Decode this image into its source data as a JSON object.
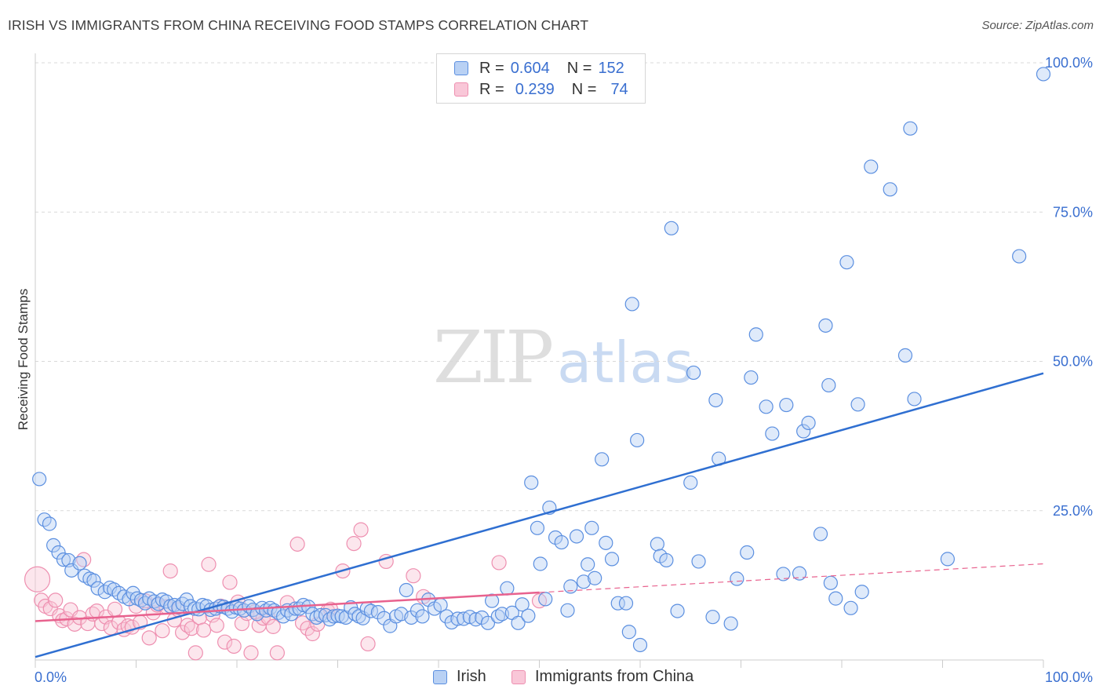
{
  "title": "IRISH VS IMMIGRANTS FROM CHINA RECEIVING FOOD STAMPS CORRELATION CHART",
  "source": "Source: ZipAtlas.com",
  "watermark": {
    "zip": "ZIP",
    "atlas": "atlas"
  },
  "legend": {
    "r_label": "R =",
    "n_label": "N =",
    "rows": [
      {
        "name": "Irish",
        "r": "0.604",
        "n": "152"
      },
      {
        "name": "Immigrants from China",
        "r": "0.239",
        "n": "74"
      }
    ]
  },
  "colors": {
    "irish": "#5b8fe0",
    "irish_fill": "#b9d1f4",
    "irish_line": "#2f6fd1",
    "china": "#ee8fb0",
    "china_fill": "#f9c7d8",
    "china_line": "#e8628e",
    "tick_label": "#3a6fd0"
  },
  "chart_data": {
    "type": "scatter",
    "title": "IRISH VS IMMIGRANTS FROM CHINA RECEIVING FOOD STAMPS CORRELATION CHART",
    "xlabel": "",
    "ylabel": "Receiving Food Stamps",
    "xlim": [
      0,
      100
    ],
    "ylim": [
      0,
      100
    ],
    "x_tick_labels": [
      "0.0%",
      "100.0%"
    ],
    "y_tick_labels": [
      "25.0%",
      "50.0%",
      "75.0%",
      "100.0%"
    ],
    "y_ticks": [
      25,
      50,
      75,
      100
    ],
    "grid": true,
    "series": [
      {
        "name": "Irish",
        "r": 0.604,
        "n": 152,
        "trend": {
          "x": [
            0,
            100
          ],
          "y": [
            0.5,
            48.0
          ],
          "style": "solid"
        },
        "points": [
          [
            0.4,
            30.3
          ],
          [
            0.9,
            23.5
          ],
          [
            1.4,
            22.8
          ],
          [
            1.8,
            19.2
          ],
          [
            2.3,
            18.0
          ],
          [
            2.8,
            16.8
          ],
          [
            3.3,
            16.7
          ],
          [
            3.6,
            15.0
          ],
          [
            4.4,
            16.2
          ],
          [
            4.9,
            14.1
          ],
          [
            5.4,
            13.6
          ],
          [
            5.8,
            13.3
          ],
          [
            6.2,
            12.0
          ],
          [
            6.9,
            11.4
          ],
          [
            7.4,
            12.1
          ],
          [
            7.8,
            11.8
          ],
          [
            8.3,
            11.2
          ],
          [
            8.8,
            10.6
          ],
          [
            9.3,
            10.2
          ],
          [
            9.7,
            11.2
          ],
          [
            10.1,
            10.3
          ],
          [
            10.5,
            10.0
          ],
          [
            10.9,
            9.5
          ],
          [
            11.3,
            10.3
          ],
          [
            11.8,
            9.8
          ],
          [
            12.2,
            9.4
          ],
          [
            12.6,
            10.1
          ],
          [
            13.0,
            9.8
          ],
          [
            13.4,
            9.0
          ],
          [
            13.8,
            9.2
          ],
          [
            14.2,
            8.8
          ],
          [
            14.6,
            9.4
          ],
          [
            15.0,
            10.1
          ],
          [
            15.4,
            9.0
          ],
          [
            15.8,
            8.6
          ],
          [
            16.2,
            8.5
          ],
          [
            16.6,
            9.2
          ],
          [
            17.0,
            9.0
          ],
          [
            17.4,
            8.4
          ],
          [
            17.9,
            8.6
          ],
          [
            18.3,
            9.0
          ],
          [
            18.7,
            8.9
          ],
          [
            19.1,
            8.6
          ],
          [
            19.5,
            8.1
          ],
          [
            19.9,
            8.8
          ],
          [
            20.3,
            8.6
          ],
          [
            20.7,
            8.3
          ],
          [
            21.2,
            9.0
          ],
          [
            21.6,
            8.4
          ],
          [
            22.0,
            7.7
          ],
          [
            22.5,
            8.7
          ],
          [
            22.9,
            8.3
          ],
          [
            23.3,
            8.7
          ],
          [
            23.7,
            8.3
          ],
          [
            24.1,
            7.9
          ],
          [
            24.6,
            7.3
          ],
          [
            25.0,
            8.3
          ],
          [
            25.4,
            7.7
          ],
          [
            25.8,
            8.6
          ],
          [
            26.2,
            8.6
          ],
          [
            26.6,
            9.2
          ],
          [
            27.1,
            8.9
          ],
          [
            27.5,
            7.7
          ],
          [
            27.9,
            7.1
          ],
          [
            28.3,
            7.5
          ],
          [
            28.8,
            7.5
          ],
          [
            29.2,
            6.8
          ],
          [
            29.6,
            7.3
          ],
          [
            30.0,
            7.4
          ],
          [
            30.4,
            7.3
          ],
          [
            30.8,
            7.1
          ],
          [
            31.3,
            8.8
          ],
          [
            31.7,
            7.7
          ],
          [
            32.1,
            7.3
          ],
          [
            32.5,
            7.0
          ],
          [
            32.9,
            8.6
          ],
          [
            33.3,
            8.2
          ],
          [
            34.0,
            8.0
          ],
          [
            34.6,
            7.0
          ],
          [
            35.2,
            5.7
          ],
          [
            35.8,
            7.3
          ],
          [
            36.3,
            7.7
          ],
          [
            36.8,
            11.7
          ],
          [
            37.3,
            7.1
          ],
          [
            37.9,
            8.3
          ],
          [
            38.4,
            7.3
          ],
          [
            39.0,
            10.1
          ],
          [
            39.6,
            8.6
          ],
          [
            40.2,
            9.2
          ],
          [
            40.8,
            7.3
          ],
          [
            41.3,
            6.3
          ],
          [
            41.9,
            6.9
          ],
          [
            42.5,
            6.9
          ],
          [
            43.1,
            7.2
          ],
          [
            43.7,
            6.8
          ],
          [
            44.3,
            7.1
          ],
          [
            44.9,
            6.2
          ],
          [
            45.3,
            9.9
          ],
          [
            45.9,
            7.3
          ],
          [
            46.3,
            7.7
          ],
          [
            46.8,
            12.0
          ],
          [
            47.3,
            7.9
          ],
          [
            47.9,
            6.2
          ],
          [
            48.3,
            9.3
          ],
          [
            48.9,
            7.4
          ],
          [
            49.2,
            29.7
          ],
          [
            49.8,
            22.1
          ],
          [
            50.1,
            16.1
          ],
          [
            50.6,
            10.2
          ],
          [
            51.0,
            25.5
          ],
          [
            51.6,
            20.5
          ],
          [
            52.2,
            19.7
          ],
          [
            52.8,
            8.3
          ],
          [
            53.1,
            12.3
          ],
          [
            53.7,
            20.7
          ],
          [
            54.4,
            13.1
          ],
          [
            54.8,
            16.0
          ],
          [
            55.2,
            22.1
          ],
          [
            55.5,
            13.7
          ],
          [
            56.2,
            33.6
          ],
          [
            56.6,
            19.6
          ],
          [
            57.2,
            16.9
          ],
          [
            57.8,
            9.5
          ],
          [
            58.6,
            9.5
          ],
          [
            58.9,
            4.7
          ],
          [
            59.2,
            59.6
          ],
          [
            59.7,
            36.8
          ],
          [
            60.0,
            2.5
          ],
          [
            61.7,
            19.4
          ],
          [
            62.0,
            17.4
          ],
          [
            62.6,
            16.7
          ],
          [
            63.1,
            72.3
          ],
          [
            63.7,
            8.2
          ],
          [
            65.0,
            29.7
          ],
          [
            65.3,
            48.1
          ],
          [
            65.8,
            16.5
          ],
          [
            67.2,
            7.2
          ],
          [
            67.5,
            43.5
          ],
          [
            67.8,
            33.7
          ],
          [
            69.0,
            6.1
          ],
          [
            69.6,
            13.6
          ],
          [
            70.6,
            18.0
          ],
          [
            71.0,
            47.3
          ],
          [
            71.5,
            54.5
          ],
          [
            72.5,
            42.4
          ],
          [
            73.1,
            37.9
          ],
          [
            74.2,
            14.4
          ],
          [
            74.5,
            42.7
          ],
          [
            75.8,
            14.5
          ],
          [
            76.2,
            38.3
          ],
          [
            76.7,
            39.7
          ],
          [
            77.9,
            21.1
          ],
          [
            78.4,
            56.0
          ],
          [
            78.7,
            46.0
          ],
          [
            78.9,
            12.9
          ],
          [
            79.4,
            10.3
          ],
          [
            80.5,
            66.6
          ],
          [
            80.9,
            8.7
          ],
          [
            81.6,
            42.8
          ],
          [
            82.0,
            11.4
          ],
          [
            82.9,
            82.6
          ],
          [
            84.8,
            78.8
          ],
          [
            86.3,
            51.0
          ],
          [
            86.8,
            89.0
          ],
          [
            87.2,
            43.7
          ],
          [
            90.5,
            16.9
          ],
          [
            97.6,
            67.6
          ],
          [
            100.0,
            98.1
          ]
        ]
      },
      {
        "name": "Immigrants from China",
        "r": 0.239,
        "n": 74,
        "trend": {
          "x": [
            0,
            50,
            100
          ],
          "y": [
            6.5,
            11.3,
            16.1
          ],
          "solid_until": 50
        },
        "points": [
          [
            0.2,
            13.5
          ],
          [
            0.6,
            10.0
          ],
          [
            1.0,
            9.0
          ],
          [
            1.5,
            8.6
          ],
          [
            2.0,
            10.0
          ],
          [
            2.4,
            7.4
          ],
          [
            2.7,
            6.6
          ],
          [
            3.1,
            6.9
          ],
          [
            3.5,
            8.4
          ],
          [
            3.9,
            6.0
          ],
          [
            4.4,
            7.1
          ],
          [
            4.8,
            16.8
          ],
          [
            5.2,
            6.1
          ],
          [
            5.7,
            7.7
          ],
          [
            6.1,
            8.2
          ],
          [
            6.6,
            6.1
          ],
          [
            7.0,
            7.2
          ],
          [
            7.5,
            5.4
          ],
          [
            7.9,
            8.5
          ],
          [
            8.3,
            6.3
          ],
          [
            8.8,
            5.1
          ],
          [
            9.2,
            5.7
          ],
          [
            9.6,
            5.5
          ],
          [
            10.0,
            9.0
          ],
          [
            10.4,
            6.3
          ],
          [
            10.9,
            9.9
          ],
          [
            11.3,
            3.7
          ],
          [
            11.7,
            7.9
          ],
          [
            12.1,
            9.2
          ],
          [
            12.6,
            4.9
          ],
          [
            13.0,
            8.9
          ],
          [
            13.4,
            14.9
          ],
          [
            13.8,
            6.7
          ],
          [
            14.2,
            8.4
          ],
          [
            14.6,
            4.6
          ],
          [
            15.1,
            5.8
          ],
          [
            15.5,
            5.3
          ],
          [
            15.9,
            1.2
          ],
          [
            16.3,
            7.1
          ],
          [
            16.7,
            5.0
          ],
          [
            17.2,
            16.0
          ],
          [
            17.6,
            7.5
          ],
          [
            18.0,
            5.8
          ],
          [
            18.4,
            9.0
          ],
          [
            18.8,
            3.0
          ],
          [
            19.3,
            13.0
          ],
          [
            19.7,
            2.3
          ],
          [
            20.1,
            9.7
          ],
          [
            20.5,
            6.1
          ],
          [
            21.0,
            7.8
          ],
          [
            21.4,
            1.2
          ],
          [
            21.8,
            8.1
          ],
          [
            22.2,
            5.8
          ],
          [
            22.6,
            7.0
          ],
          [
            23.1,
            7.1
          ],
          [
            23.6,
            5.6
          ],
          [
            24.0,
            1.2
          ],
          [
            25.0,
            9.6
          ],
          [
            26.0,
            19.4
          ],
          [
            26.5,
            6.2
          ],
          [
            27.0,
            5.3
          ],
          [
            27.5,
            4.4
          ],
          [
            28.0,
            6.0
          ],
          [
            29.0,
            8.2
          ],
          [
            29.3,
            8.5
          ],
          [
            30.5,
            14.9
          ],
          [
            31.6,
            19.5
          ],
          [
            32.3,
            21.8
          ],
          [
            33.0,
            2.7
          ],
          [
            34.8,
            16.5
          ],
          [
            37.5,
            14.1
          ],
          [
            38.5,
            10.6
          ],
          [
            46.0,
            16.3
          ],
          [
            50.0,
            9.9
          ]
        ]
      }
    ]
  }
}
